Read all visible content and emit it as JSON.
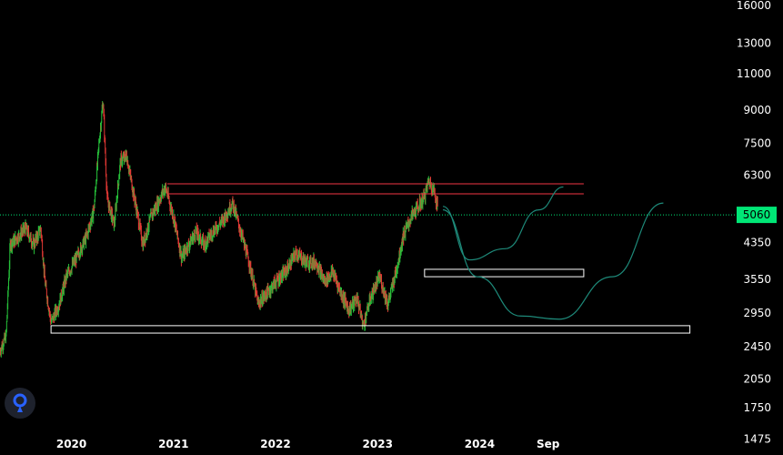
{
  "chart_data": {
    "type": "candlestick",
    "title": "",
    "xlabel": "",
    "ylabel": "",
    "y_scale": "log",
    "ylim": [
      1350,
      16500
    ],
    "y_ticks": [
      16000,
      13000,
      11000,
      9000,
      7500,
      6300,
      5060,
      4350,
      3550,
      2950,
      2450,
      2050,
      1750,
      1475
    ],
    "x_ticks": [
      "2020",
      "2021",
      "2022",
      "2023",
      "2024",
      "Sep"
    ],
    "x_tick_times": [
      2020.0,
      2021.0,
      2022.0,
      2023.0,
      2024.0,
      2024.67
    ],
    "xlim": [
      2019.3,
      2026.5
    ],
    "grid": false,
    "legend": "none",
    "current_price": 5060,
    "price_series": [
      {
        "t": 2019.3,
        "v": 2400
      },
      {
        "t": 2019.36,
        "v": 2600
      },
      {
        "t": 2019.4,
        "v": 4300
      },
      {
        "t": 2019.48,
        "v": 4500
      },
      {
        "t": 2019.55,
        "v": 4700
      },
      {
        "t": 2019.63,
        "v": 4300
      },
      {
        "t": 2019.7,
        "v": 4700
      },
      {
        "t": 2019.74,
        "v": 3500
      },
      {
        "t": 2019.8,
        "v": 2800
      },
      {
        "t": 2019.88,
        "v": 3100
      },
      {
        "t": 2019.95,
        "v": 3600
      },
      {
        "t": 2020.05,
        "v": 4000
      },
      {
        "t": 2020.15,
        "v": 4500
      },
      {
        "t": 2020.22,
        "v": 5200
      },
      {
        "t": 2020.27,
        "v": 7500
      },
      {
        "t": 2020.31,
        "v": 9500
      },
      {
        "t": 2020.35,
        "v": 5500
      },
      {
        "t": 2020.42,
        "v": 4800
      },
      {
        "t": 2020.48,
        "v": 6800
      },
      {
        "t": 2020.54,
        "v": 7000
      },
      {
        "t": 2020.62,
        "v": 5500
      },
      {
        "t": 2020.7,
        "v": 4300
      },
      {
        "t": 2020.78,
        "v": 5000
      },
      {
        "t": 2020.86,
        "v": 5500
      },
      {
        "t": 2020.92,
        "v": 5900
      },
      {
        "t": 2021.0,
        "v": 5000
      },
      {
        "t": 2021.08,
        "v": 4000
      },
      {
        "t": 2021.15,
        "v": 4300
      },
      {
        "t": 2021.22,
        "v": 4600
      },
      {
        "t": 2021.3,
        "v": 4300
      },
      {
        "t": 2021.38,
        "v": 4600
      },
      {
        "t": 2021.48,
        "v": 4900
      },
      {
        "t": 2021.58,
        "v": 5400
      },
      {
        "t": 2021.66,
        "v": 4600
      },
      {
        "t": 2021.74,
        "v": 3900
      },
      {
        "t": 2021.83,
        "v": 3100
      },
      {
        "t": 2021.92,
        "v": 3300
      },
      {
        "t": 2022.0,
        "v": 3500
      },
      {
        "t": 2022.1,
        "v": 3700
      },
      {
        "t": 2022.2,
        "v": 4100
      },
      {
        "t": 2022.3,
        "v": 3900
      },
      {
        "t": 2022.4,
        "v": 3900
      },
      {
        "t": 2022.48,
        "v": 3500
      },
      {
        "t": 2022.56,
        "v": 3700
      },
      {
        "t": 2022.64,
        "v": 3300
      },
      {
        "t": 2022.72,
        "v": 3000
      },
      {
        "t": 2022.8,
        "v": 3200
      },
      {
        "t": 2022.86,
        "v": 2750
      },
      {
        "t": 2022.93,
        "v": 3200
      },
      {
        "t": 2023.02,
        "v": 3600
      },
      {
        "t": 2023.1,
        "v": 3100
      },
      {
        "t": 2023.18,
        "v": 3700
      },
      {
        "t": 2023.25,
        "v": 4500
      },
      {
        "t": 2023.33,
        "v": 5000
      },
      {
        "t": 2023.4,
        "v": 5300
      },
      {
        "t": 2023.46,
        "v": 5600
      },
      {
        "t": 2023.5,
        "v": 6100
      },
      {
        "t": 2023.55,
        "v": 5800
      },
      {
        "t": 2023.59,
        "v": 5300
      }
    ],
    "annotations": {
      "resistance_lines": [
        {
          "value": 6000,
          "t_start": 2020.94,
          "t_end": 2025.02,
          "color": "#f23645"
        },
        {
          "value": 5680,
          "t_start": 2020.94,
          "t_end": 2025.02,
          "color": "#f23645"
        }
      ],
      "price_line": {
        "value": 5060,
        "color": "#00e676",
        "style": "dotted"
      },
      "support_zones": [
        {
          "v_high": 3750,
          "v_low": 3600,
          "t_start": 2023.46,
          "t_end": 2025.02,
          "color": "#ffffff"
        },
        {
          "v_high": 2750,
          "v_low": 2640,
          "t_start": 2019.8,
          "t_end": 2026.06,
          "color": "#ffffff"
        }
      ],
      "projection_paths": [
        {
          "color": "#1e8a7a",
          "points": [
            {
              "t": 2023.64,
              "v": 5300
            },
            {
              "t": 2023.9,
              "v": 3950
            },
            {
              "t": 2024.25,
              "v": 4200
            },
            {
              "t": 2024.58,
              "v": 5200
            },
            {
              "t": 2024.82,
              "v": 5900
            }
          ]
        },
        {
          "color": "#1e8a7a",
          "points": [
            {
              "t": 2023.64,
              "v": 5200
            },
            {
              "t": 2023.98,
              "v": 3600
            },
            {
              "t": 2024.4,
              "v": 2900
            },
            {
              "t": 2024.78,
              "v": 2850
            },
            {
              "t": 2025.3,
              "v": 3600
            },
            {
              "t": 2025.8,
              "v": 5400
            }
          ]
        }
      ]
    }
  }
}
